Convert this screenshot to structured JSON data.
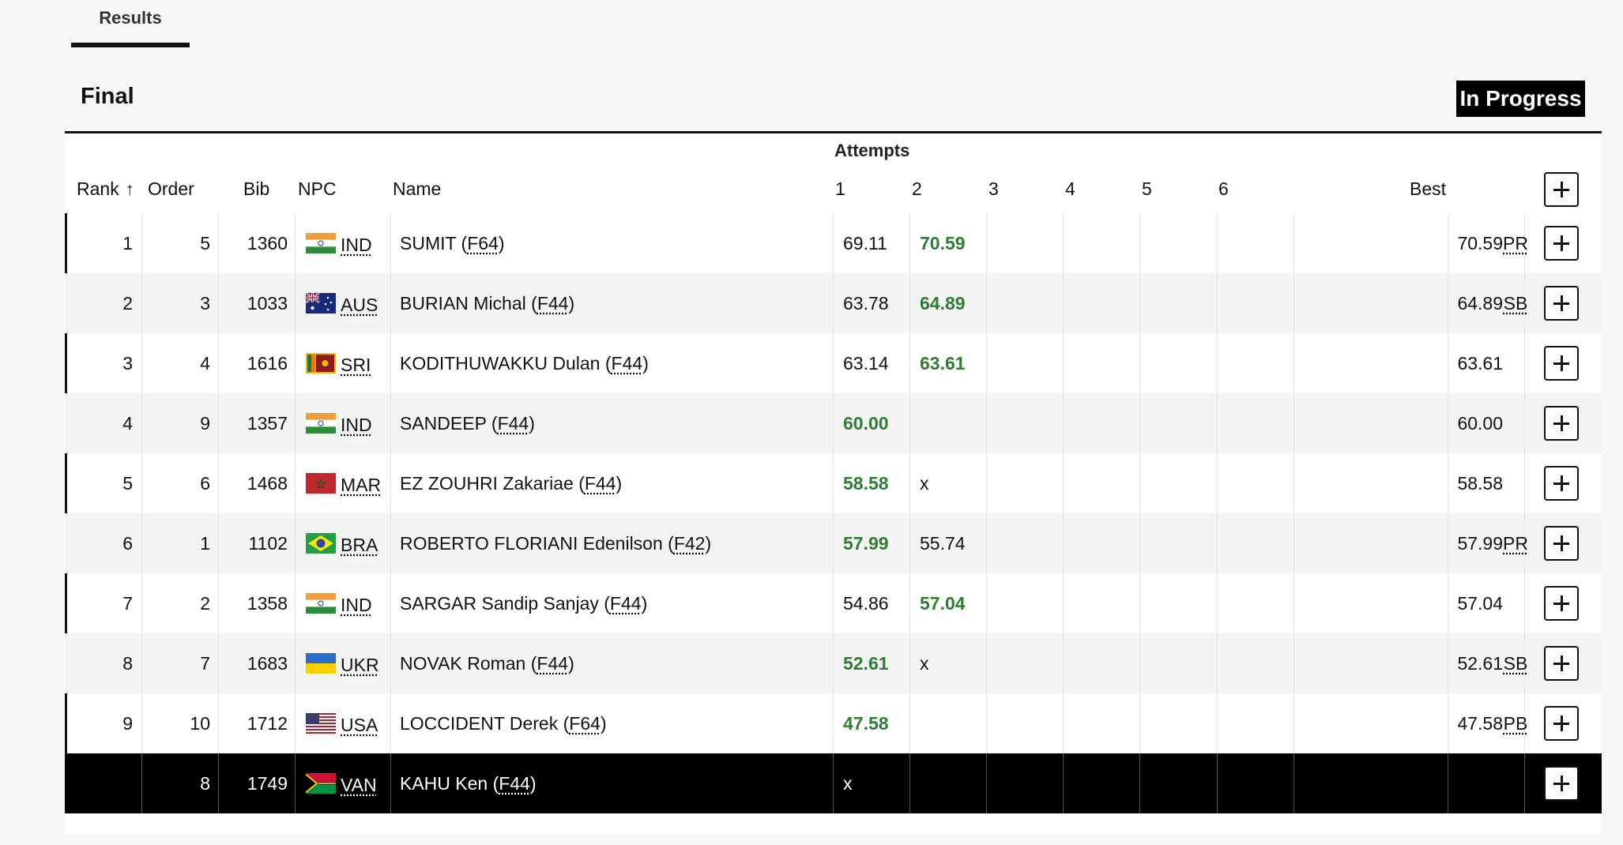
{
  "tabs": {
    "results": "Results"
  },
  "event": {
    "title": "Final",
    "status": "In Progress"
  },
  "columns": {
    "attempts_group": "Attempts",
    "rank": "Rank",
    "order": "Order",
    "bib": "Bib",
    "npc": "NPC",
    "name": "Name",
    "a1": "1",
    "a2": "2",
    "a3": "3",
    "a4": "4",
    "a5": "5",
    "a6": "6",
    "best": "Best"
  },
  "rows": [
    {
      "rank": "1",
      "order": "5",
      "bib": "1360",
      "npc": "IND",
      "flag": "india-flag-icon",
      "name": "SUMIT",
      "class": "F64",
      "a1": "69.11",
      "a1_best": false,
      "a2": "70.59",
      "a2_best": true,
      "best": "70.59",
      "record": "PR"
    },
    {
      "rank": "2",
      "order": "3",
      "bib": "1033",
      "npc": "AUS",
      "flag": "australia-flag-icon",
      "name": "BURIAN Michal",
      "class": "F44",
      "a1": "63.78",
      "a1_best": false,
      "a2": "64.89",
      "a2_best": true,
      "best": "64.89",
      "record": "SB"
    },
    {
      "rank": "3",
      "order": "4",
      "bib": "1616",
      "npc": "SRI",
      "flag": "sri-lanka-flag-icon",
      "name": "KODITHUWAKKU Dulan",
      "class": "F44",
      "a1": "63.14",
      "a1_best": false,
      "a2": "63.61",
      "a2_best": true,
      "best": "63.61",
      "record": ""
    },
    {
      "rank": "4",
      "order": "9",
      "bib": "1357",
      "npc": "IND",
      "flag": "india-flag-icon",
      "name": "SANDEEP",
      "class": "F44",
      "a1": "60.00",
      "a1_best": true,
      "a2": "",
      "a2_best": false,
      "best": "60.00",
      "record": ""
    },
    {
      "rank": "5",
      "order": "6",
      "bib": "1468",
      "npc": "MAR",
      "flag": "morocco-flag-icon",
      "name": "EZ ZOUHRI Zakariae",
      "class": "F44",
      "a1": "58.58",
      "a1_best": true,
      "a2": "x",
      "a2_best": false,
      "best": "58.58",
      "record": ""
    },
    {
      "rank": "6",
      "order": "1",
      "bib": "1102",
      "npc": "BRA",
      "flag": "brazil-flag-icon",
      "name": "ROBERTO FLORIANI Edenilson",
      "class": "F42",
      "a1": "57.99",
      "a1_best": true,
      "a2": "55.74",
      "a2_best": false,
      "best": "57.99",
      "record": "PR"
    },
    {
      "rank": "7",
      "order": "2",
      "bib": "1358",
      "npc": "IND",
      "flag": "india-flag-icon",
      "name": "SARGAR Sandip Sanjay",
      "class": "F44",
      "a1": "54.86",
      "a1_best": false,
      "a2": "57.04",
      "a2_best": true,
      "best": "57.04",
      "record": ""
    },
    {
      "rank": "8",
      "order": "7",
      "bib": "1683",
      "npc": "UKR",
      "flag": "ukraine-flag-icon",
      "name": "NOVAK Roman",
      "class": "F44",
      "a1": "52.61",
      "a1_best": true,
      "a2": "x",
      "a2_best": false,
      "best": "52.61",
      "record": "SB"
    },
    {
      "rank": "9",
      "order": "10",
      "bib": "1712",
      "npc": "USA",
      "flag": "usa-flag-icon",
      "name": "LOCCIDENT Derek",
      "class": "F64",
      "a1": "47.58",
      "a1_best": true,
      "a2": "",
      "a2_best": false,
      "best": "47.58",
      "record": "PB"
    },
    {
      "rank": "",
      "order": "8",
      "bib": "1749",
      "npc": "VAN",
      "flag": "vanuatu-flag-icon",
      "name": "KAHU Ken",
      "class": "F44",
      "a1": "x",
      "a1_best": false,
      "a2": "",
      "a2_best": false,
      "best": "",
      "record": ""
    }
  ],
  "colors": {
    "best_attempt": "#2e7d32",
    "accent": "#000000",
    "row_alt": "#f3f3f3"
  }
}
